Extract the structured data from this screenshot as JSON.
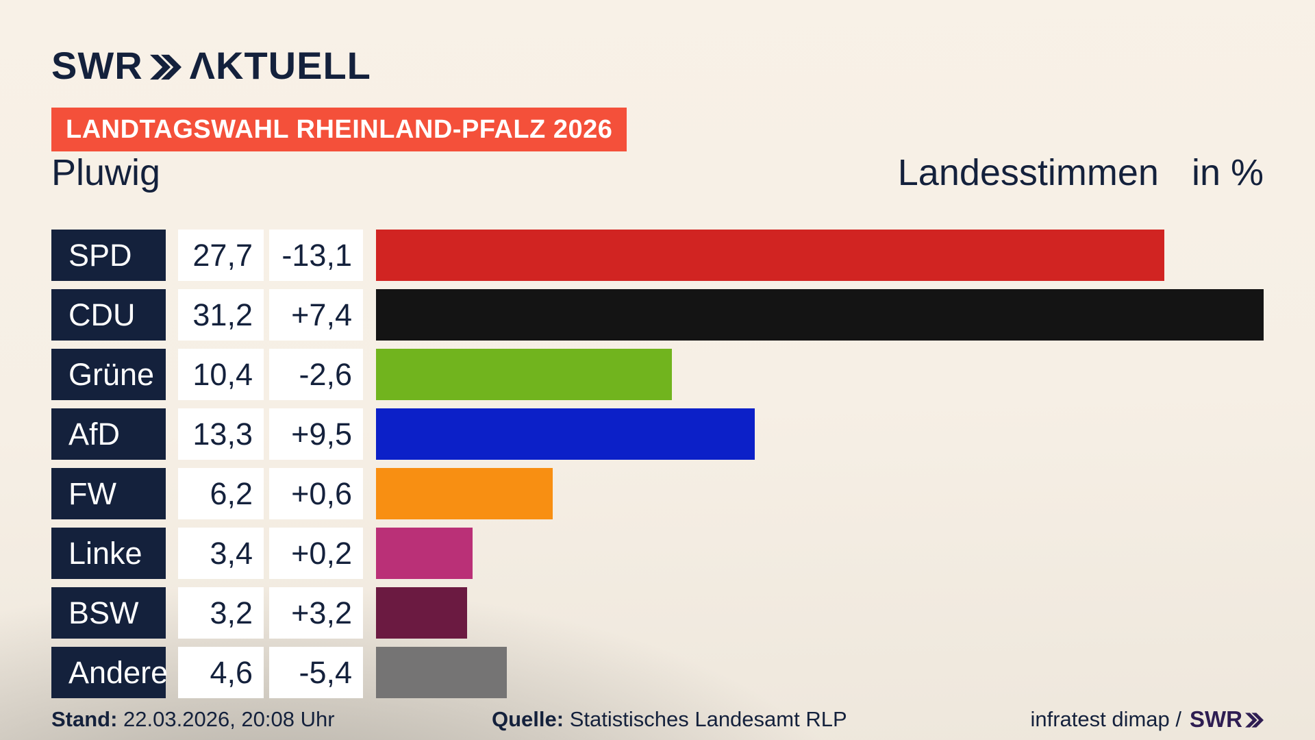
{
  "header": {
    "logo_swr": "SWR",
    "logo_aktuell": "ΛKTUELL",
    "banner": "LANDTAGSWAHL RHEINLAND-PFALZ 2026"
  },
  "title": {
    "region": "Pluwig",
    "vote_type": "Landesstimmen",
    "unit": "in %"
  },
  "chart_data": {
    "type": "bar",
    "orientation": "horizontal",
    "title": "Landtagswahl Rheinland-Pfalz 2026 – Pluwig, Landesstimmen in %",
    "unit": "%",
    "xlim": [
      0,
      31.2
    ],
    "grid": false,
    "legend_position": "none",
    "categories": [
      "SPD",
      "CDU",
      "Grüne",
      "AfD",
      "FW",
      "Linke",
      "BSW",
      "Andere"
    ],
    "values": [
      27.7,
      31.2,
      10.4,
      13.3,
      6.2,
      3.4,
      3.2,
      4.6
    ],
    "changes": [
      -13.1,
      7.4,
      -2.6,
      9.5,
      0.6,
      0.2,
      3.2,
      -5.4
    ],
    "value_labels": [
      "27,7",
      "31,2",
      "10,4",
      "13,3",
      "6,2",
      "3,4",
      "3,2",
      "4,6"
    ],
    "change_labels": [
      "-13,1",
      "+7,4",
      "-2,6",
      "+9,5",
      "+0,6",
      "+0,2",
      "+3,2",
      "-5,4"
    ],
    "bar_colors": [
      "#d12422",
      "#141414",
      "#71b41e",
      "#0c20c8",
      "#f88f12",
      "#ba3077",
      "#6b1a41",
      "#757474"
    ]
  },
  "footer": {
    "stand_label": "Stand:",
    "stand_value": " 22.03.2026, 20:08 Uhr",
    "quelle_label": "Quelle:",
    "quelle_value": " Statistisches Landesamt RLP",
    "credit_text": "infratest dimap /",
    "credit_logo": "SWR"
  },
  "colors": {
    "background_top": "#f7f0e6",
    "background_shadow_bottom_left": "#c9c6be",
    "banner_bg": "#f4503a",
    "text_navy": "#14213c",
    "label_box_bg": "#14213c",
    "value_box_bg": "#ffffff",
    "footer_logo_purple": "#2e1d52"
  }
}
